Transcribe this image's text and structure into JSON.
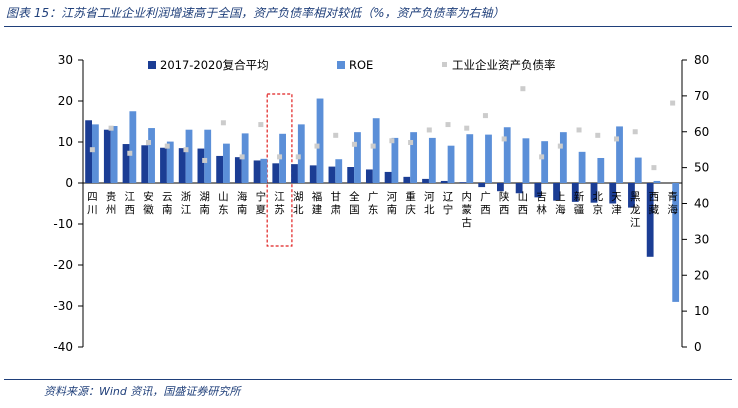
{
  "header": {
    "title": "图表 15：江苏省工业企业利润增速高于全国，资产负债率相对较低（%，资产负债率为右轴）"
  },
  "footer": {
    "source": "资料来源：Wind 资讯，国盛证券研究所"
  },
  "chart_data": {
    "type": "bar",
    "categories": [
      "四川",
      "贵州",
      "江西",
      "安徽",
      "云南",
      "浙江",
      "湖南",
      "山东",
      "海南",
      "宁夏",
      "江苏",
      "湖北",
      "福建",
      "甘肃",
      "全国",
      "广东",
      "河南",
      "重庆",
      "河北",
      "辽宁",
      "内蒙古",
      "广西",
      "陕西",
      "山西",
      "吉林",
      "上海",
      "新疆",
      "北京",
      "天津",
      "黑龙江",
      "西藏",
      "青海"
    ],
    "series": [
      {
        "name": "2017-2020复合平均",
        "kind": "bar",
        "axis": "left",
        "color": "#1b3d94",
        "values": [
          15.3,
          13.0,
          9.5,
          9.2,
          8.6,
          8.5,
          8.4,
          6.6,
          6.3,
          5.5,
          4.8,
          4.6,
          4.3,
          4.0,
          3.9,
          3.3,
          2.7,
          1.5,
          1.0,
          0.5,
          0.2,
          -1.0,
          -2.0,
          -2.5,
          -3.5,
          -4.3,
          -4.6,
          -4.8,
          -5.0,
          -6.0,
          -18.0,
          0.0
        ]
      },
      {
        "name": "ROE",
        "kind": "bar",
        "axis": "left",
        "color": "#5b8fd8",
        "values": [
          14.3,
          13.9,
          17.5,
          13.4,
          10.1,
          13.0,
          13.0,
          9.6,
          12.1,
          5.9,
          12.0,
          14.3,
          20.6,
          5.8,
          12.4,
          15.8,
          11.0,
          12.4,
          11.0,
          9.1,
          11.9,
          11.8,
          13.6,
          10.9,
          10.2,
          12.4,
          7.6,
          6.1,
          13.8,
          6.2,
          0.5,
          -29.0
        ]
      },
      {
        "name": "工业企业资产负债率",
        "kind": "marker",
        "axis": "right",
        "color": "#cccccc",
        "values": [
          55.0,
          61.0,
          54.0,
          57.0,
          56.0,
          55.0,
          52.0,
          62.5,
          53.0,
          62.0,
          53.0,
          53.0,
          56.0,
          59.0,
          56.5,
          56.0,
          57.5,
          57.0,
          60.5,
          62.0,
          61.0,
          64.5,
          58.0,
          72.0,
          53.0,
          56.0,
          60.5,
          59.0,
          58.0,
          60.0,
          50.0,
          68.0
        ]
      }
    ],
    "yleft": {
      "min": -40,
      "max": 30,
      "ticks": [
        -40,
        -30,
        -20,
        -10,
        0,
        10,
        20,
        30
      ]
    },
    "yright": {
      "min": 0,
      "max": 80,
      "ticks": [
        0,
        10,
        20,
        30,
        40,
        50,
        60,
        70,
        80
      ]
    },
    "legend": {
      "placement": "top",
      "items": [
        "2017-2020复合平均",
        "ROE",
        "工业企业资产负债率"
      ]
    },
    "highlight": {
      "category": "江苏",
      "style": "red-dashed-box"
    }
  }
}
